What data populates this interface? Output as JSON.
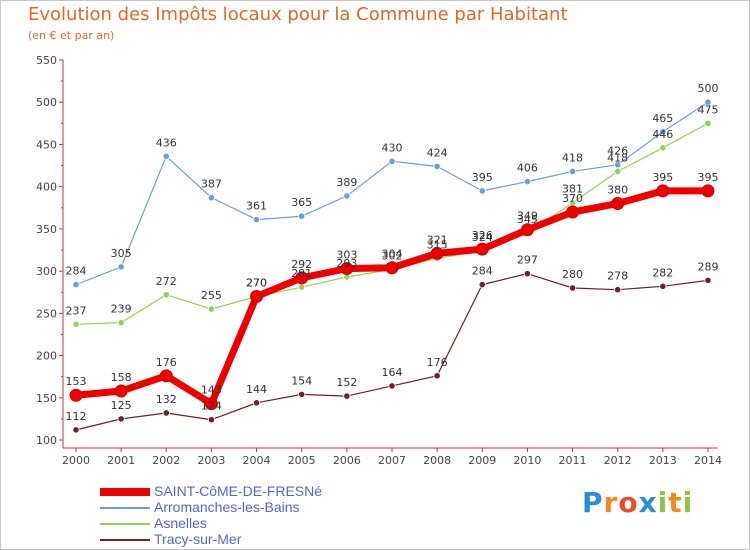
{
  "title": "Evolution des Impôts locaux pour la Commune par Habitant",
  "subtitle": "(en € et par an)",
  "chart_data": {
    "type": "line",
    "title": "Evolution des Impôts locaux pour la Commune par Habitant",
    "subtitle": "(en € et par an)",
    "xlabel": "",
    "ylabel": "",
    "ylim": [
      100,
      550
    ],
    "yticks": [
      100,
      150,
      200,
      250,
      300,
      350,
      400,
      450,
      500,
      550
    ],
    "categories": [
      "2000",
      "2001",
      "2002",
      "2003",
      "2004",
      "2005",
      "2006",
      "2007",
      "2008",
      "2009",
      "2010",
      "2011",
      "2012",
      "2013",
      "2014"
    ],
    "series": [
      {
        "name": "Arromanches-les-Bains",
        "color": "#6a9fd8",
        "values": [
          284,
          305,
          436,
          387,
          361,
          365,
          389,
          430,
          424,
          395,
          406,
          418,
          426,
          465,
          500
        ],
        "labels": [
          "284",
          "305",
          "436",
          "387",
          "361",
          "365",
          "389",
          "430",
          "424",
          "395",
          "406",
          "418",
          "426",
          "465",
          "500"
        ]
      },
      {
        "name": "Asnelles",
        "color": "#8fd45a",
        "values": [
          237,
          239,
          272,
          255,
          270,
          281,
          293,
          302,
          315,
          324,
          345,
          381,
          418,
          446,
          475
        ],
        "labels": [
          "237",
          "239",
          "272",
          "255",
          "270",
          "281",
          "293",
          "302",
          "315",
          "324",
          "345",
          "381",
          "418",
          "446",
          "475"
        ]
      },
      {
        "name": "Tracy-sur-Mer",
        "color": "#6b2323",
        "values": [
          112,
          125,
          132,
          124,
          144,
          154,
          152,
          164,
          176,
          284,
          297,
          280,
          278,
          282,
          289
        ],
        "labels": [
          "112",
          "125",
          "132",
          "124",
          "144",
          "154",
          "152",
          "164",
          "176",
          "284",
          "297",
          "280",
          "278",
          "282",
          "289"
        ]
      },
      {
        "name": "SAINT-CôME-DE-FRESNé",
        "color": "#ee0000",
        "values": [
          153,
          158,
          176,
          143,
          270,
          292,
          303,
          304,
          321,
          326,
          349,
          370,
          380,
          395,
          395
        ],
        "labels": [
          "153",
          "158",
          "176",
          "143",
          "270",
          "292",
          "303",
          "304",
          "321",
          "326",
          "349",
          "370",
          "380",
          "395",
          "395"
        ]
      }
    ],
    "legend": [
      "SAINT-CôME-DE-FRESNé",
      "Arromanches-les-Bains",
      "Asnelles",
      "Tracy-sur-Mer"
    ],
    "legend_position": "bottom-left",
    "grid": false
  },
  "legend": {
    "items": [
      {
        "label": "SAINT-CôME-DE-FRESNé",
        "color": "#ee0000"
      },
      {
        "label": "Arromanches-les-Bains",
        "color": "#6a9fd8"
      },
      {
        "label": "Asnelles",
        "color": "#8fd45a"
      },
      {
        "label": "Tracy-sur-Mer",
        "color": "#6b2323"
      }
    ]
  },
  "logo": {
    "text": "Proxiti"
  }
}
